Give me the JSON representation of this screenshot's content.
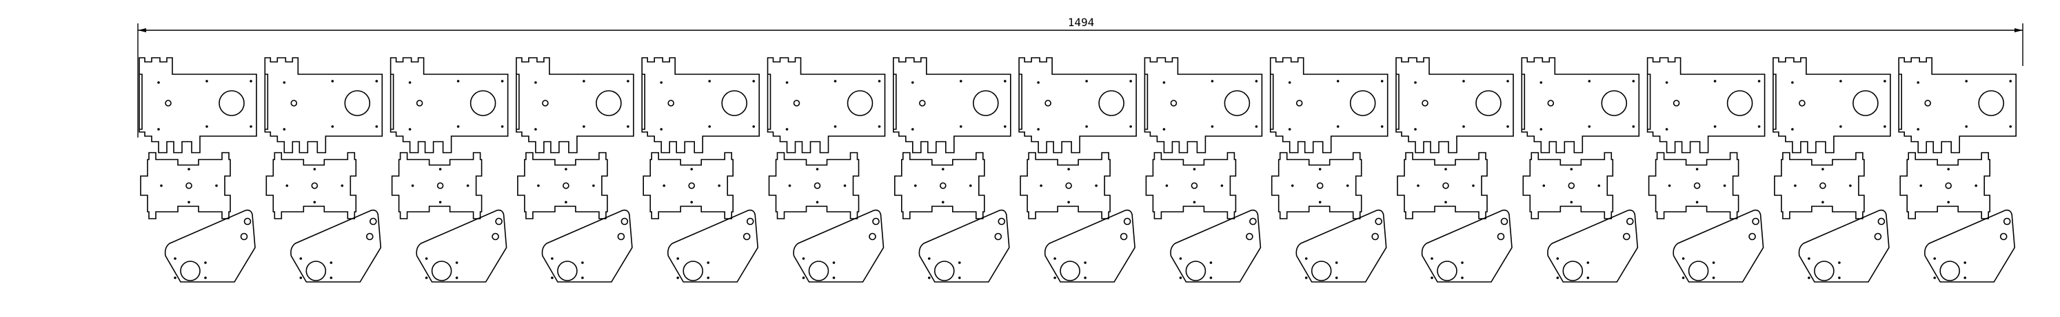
{
  "drawing": {
    "overall_dimension": "1494",
    "columns": 15,
    "part_rows": [
      "bracket-plate",
      "center-plate",
      "angled-mount-plate"
    ],
    "line_color": "#000000",
    "background": "#ffffff"
  }
}
